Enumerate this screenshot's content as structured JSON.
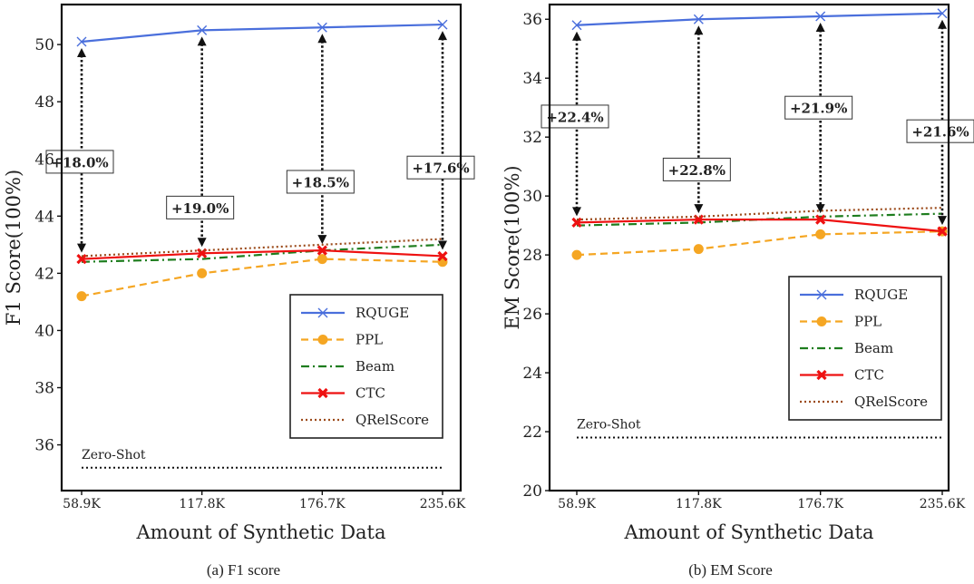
{
  "chart_data": [
    {
      "type": "line",
      "caption": "(a) F1 score",
      "xlabel": "Amount of Synthetic Data",
      "ylabel": "F1 Score(100%)",
      "categories": [
        "58.9K",
        "117.8K",
        "176.7K",
        "235.6K"
      ],
      "ylim": [
        34.4,
        51.4
      ],
      "yticks": [
        36,
        38,
        40,
        42,
        44,
        46,
        48,
        50
      ],
      "legend_position": "lower-right",
      "grid": false,
      "series": [
        {
          "name": "RQUGE",
          "values": [
            50.1,
            50.5,
            50.6,
            50.7
          ],
          "color": "#4a6fdc",
          "style": "solid",
          "marker": "x"
        },
        {
          "name": "PPL",
          "values": [
            41.2,
            42.0,
            42.5,
            42.4
          ],
          "color": "#f5a623",
          "style": "dashed",
          "marker": "circle"
        },
        {
          "name": "Beam",
          "values": [
            42.4,
            42.5,
            42.8,
            43.0
          ],
          "color": "#1e7d1e",
          "style": "dashdot",
          "marker": "none"
        },
        {
          "name": "CTC",
          "values": [
            42.5,
            42.7,
            42.8,
            42.6
          ],
          "color": "#ee1111",
          "style": "solid",
          "marker": "xbold"
        },
        {
          "name": "QRelScore",
          "values": [
            42.6,
            42.8,
            43.0,
            43.2
          ],
          "color": "#9b4a1a",
          "style": "dotted",
          "marker": "none"
        }
      ],
      "baseline": {
        "label": "Zero-Shot",
        "value": 35.2
      },
      "annotations": [
        {
          "label": "+18.0%",
          "category_index": 0,
          "y_position": 45.9
        },
        {
          "label": "+19.0%",
          "category_index": 1,
          "y_position": 44.3
        },
        {
          "label": "+18.5%",
          "category_index": 2,
          "y_position": 45.2
        },
        {
          "label": "+17.6%",
          "category_index": 3,
          "y_position": 45.7
        }
      ]
    },
    {
      "type": "line",
      "caption": "(b) EM Score",
      "xlabel": "Amount of Synthetic Data",
      "ylabel": "EM Score(100%)",
      "categories": [
        "58.9K",
        "117.8K",
        "176.7K",
        "235.6K"
      ],
      "ylim": [
        20,
        36.5
      ],
      "yticks": [
        20,
        22,
        24,
        26,
        28,
        30,
        32,
        34,
        36
      ],
      "legend_position": "lower-right",
      "grid": false,
      "series": [
        {
          "name": "RQUGE",
          "values": [
            35.8,
            36.0,
            36.1,
            36.2
          ],
          "color": "#4a6fdc",
          "style": "solid",
          "marker": "x"
        },
        {
          "name": "PPL",
          "values": [
            28.0,
            28.2,
            28.7,
            28.8
          ],
          "color": "#f5a623",
          "style": "dashed",
          "marker": "circle"
        },
        {
          "name": "Beam",
          "values": [
            29.0,
            29.1,
            29.3,
            29.4
          ],
          "color": "#1e7d1e",
          "style": "dashdot",
          "marker": "none"
        },
        {
          "name": "CTC",
          "values": [
            29.1,
            29.2,
            29.2,
            28.8
          ],
          "color": "#ee1111",
          "style": "solid",
          "marker": "xbold"
        },
        {
          "name": "QRelScore",
          "values": [
            29.2,
            29.3,
            29.5,
            29.6
          ],
          "color": "#9b4a1a",
          "style": "dotted",
          "marker": "none"
        }
      ],
      "baseline": {
        "label": "Zero-Shot",
        "value": 21.8
      },
      "annotations": [
        {
          "label": "+22.4%",
          "category_index": 0,
          "y_position": 32.7
        },
        {
          "label": "+22.8%",
          "category_index": 1,
          "y_position": 30.9
        },
        {
          "label": "+21.9%",
          "category_index": 2,
          "y_position": 33.0
        },
        {
          "label": "+21.6%",
          "category_index": 3,
          "y_position": 32.2
        }
      ]
    }
  ]
}
